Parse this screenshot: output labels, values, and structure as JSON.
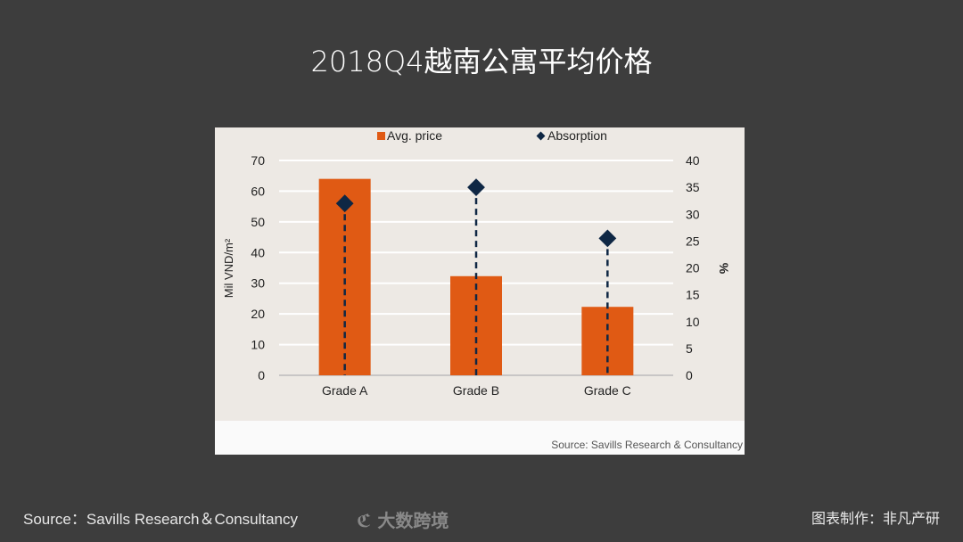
{
  "title": "2018Q4越南公寓平均价格",
  "chart_data": {
    "type": "bar",
    "categories": [
      "Grade A",
      "Grade B",
      "Grade C"
    ],
    "series": [
      {
        "name": "Avg. price",
        "type": "bar",
        "axis": "left",
        "values": [
          64,
          32.3,
          22.3
        ],
        "color": "#e05a14"
      },
      {
        "name": "Absorption",
        "type": "scatter",
        "axis": "right",
        "values": [
          32,
          35,
          25.5
        ],
        "color": "#0f2744"
      }
    ],
    "ylabel": "Mil VND/m²",
    "ylabel_right": "%",
    "ylim": [
      0,
      70
    ],
    "yticks": [
      0,
      10,
      20,
      30,
      40,
      50,
      60,
      70
    ],
    "ylim_right": [
      0,
      40
    ],
    "yticks_right": [
      0,
      5,
      10,
      15,
      20,
      25,
      30,
      35,
      40
    ],
    "grid": true,
    "legend": "top",
    "source": "Source: Savills Research & Consultancy"
  },
  "footer": {
    "source": "Source：Savills Research＆Consultancy",
    "credit": "图表制作：非凡产研",
    "watermark": "大数跨境"
  }
}
